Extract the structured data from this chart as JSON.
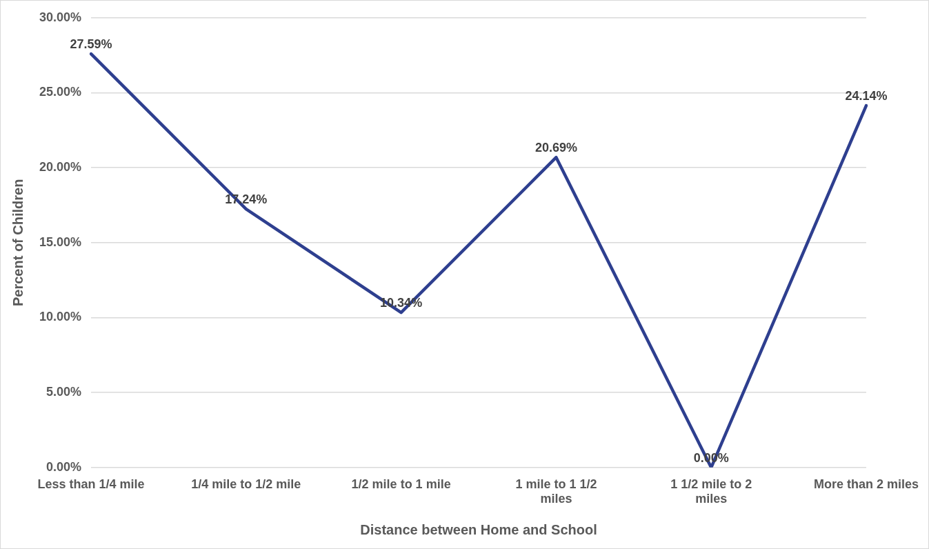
{
  "chart_data": {
    "type": "line",
    "xlabel": "Distance between Home and School",
    "ylabel": "Percent of Children",
    "categories": [
      "Less than 1/4 mile",
      "1/4 mile to 1/2 mile",
      "1/2 mile to 1 mile",
      "1 mile to 1 1/2 miles",
      "1 1/2 mile to 2 miles",
      "More than 2 miles"
    ],
    "series": [
      {
        "color": "#2e3f8f",
        "values": [
          27.59,
          17.24,
          10.34,
          20.69,
          0,
          24.14
        ],
        "value_labels": [
          "27.59%",
          "17.24%",
          "10.34%",
          "20.69%",
          "0.00%",
          "24.14%"
        ]
      }
    ],
    "ylim": [
      0,
      30
    ],
    "yticks": [
      {
        "value": 0,
        "label": "0.00%"
      },
      {
        "value": 5,
        "label": "5.00%"
      },
      {
        "value": 10,
        "label": "10.00%"
      },
      {
        "value": 15,
        "label": "15.00%"
      },
      {
        "value": 20,
        "label": "20.00%"
      },
      {
        "value": 25,
        "label": "25.00%"
      },
      {
        "value": 30,
        "label": "30.00%"
      }
    ],
    "grid": "y",
    "legend": false,
    "marker": "none",
    "line_style": "solid"
  }
}
